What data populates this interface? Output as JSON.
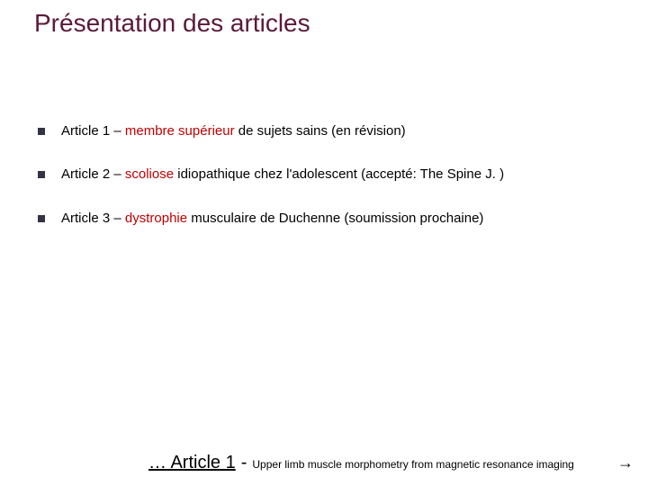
{
  "colors": {
    "title": "#5a1a3a",
    "highlight": "#c00000",
    "bullet_square": "#333344",
    "text": "#000000",
    "background": "#ffffff"
  },
  "typography": {
    "title_fontsize": 28,
    "bullet_fontsize": 15,
    "footer_lead_fontsize": 20,
    "footer_sub_fontsize": 12,
    "font_family": "Arial"
  },
  "title": "Présentation des articles",
  "bullets": [
    {
      "pre": "Article 1 – ",
      "highlight": "membre supérieur",
      "post": " de sujets sains (en révision)"
    },
    {
      "pre": "Article 2 – ",
      "highlight": "scoliose",
      "post": " idiopathique chez l'adolescent (accepté: The Spine J. )"
    },
    {
      "pre": "Article 3 – ",
      "highlight": "dystrophie",
      "post": " musculaire de Duchenne (soumission prochaine)"
    }
  ],
  "footer": {
    "lead": "… Article 1 ",
    "dash": "-",
    "sub": "Upper limb muscle morphometry from magnetic resonance imaging",
    "arrow": "→"
  }
}
